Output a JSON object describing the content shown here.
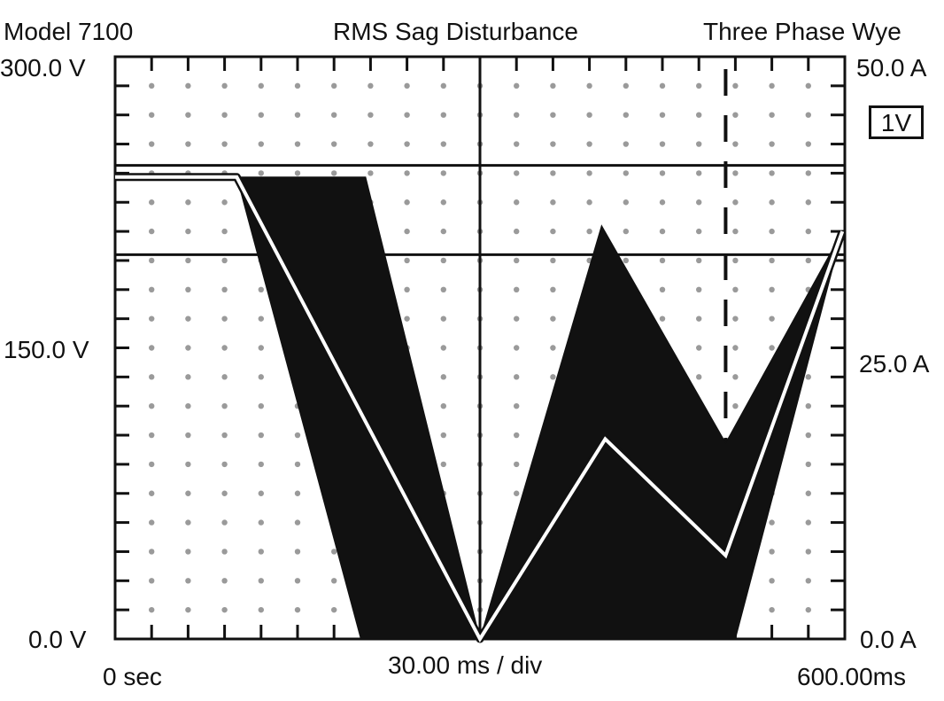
{
  "header": {
    "model": "Model 7100",
    "title": "RMS Sag Disturbance",
    "config": "Three Phase Wye"
  },
  "axes": {
    "y_left_top": "300.0 V",
    "y_left_mid": "150.0 V",
    "y_left_bottom": "0.0 V",
    "y_right_top": "50.0 A",
    "y_right_mid": "25.0 A",
    "y_right_bottom": "0.0 A",
    "x_start": "0 sec",
    "x_scale": "30.00 ms / div",
    "x_end": "600.00ms"
  },
  "channel_badge": "1V",
  "colors": {
    "fill": "#111111",
    "trace": "#ffffff",
    "grid_dot": "#9a9a9a",
    "axis": "#111111"
  },
  "chart_data": {
    "type": "area",
    "title": "RMS Sag Disturbance",
    "xlim": [
      0,
      600
    ],
    "ylim": [
      0,
      300
    ],
    "x_unit": "ms",
    "y_unit": "V",
    "grid": "dotted",
    "threshold_lines_v": [
      244,
      198
    ],
    "marker_dashed_x_ms": 502,
    "band_upper": [
      {
        "x": 0,
        "y": 238
      },
      {
        "x": 100,
        "y": 238
      },
      {
        "x": 206,
        "y": 238
      },
      {
        "x": 300,
        "y": 0
      },
      {
        "x": 400,
        "y": 213
      },
      {
        "x": 502,
        "y": 101
      },
      {
        "x": 598,
        "y": 210
      }
    ],
    "band_lower": [
      {
        "x": 0,
        "y": 238
      },
      {
        "x": 100,
        "y": 238
      },
      {
        "x": 202,
        "y": 0
      },
      {
        "x": 510,
        "y": 0
      },
      {
        "x": 598,
        "y": 210
      }
    ],
    "series": [
      {
        "x": [
          0,
          100,
          300,
          403,
          502,
          598
        ],
        "y": [
          238,
          238,
          0,
          103,
          43,
          210
        ]
      }
    ]
  }
}
